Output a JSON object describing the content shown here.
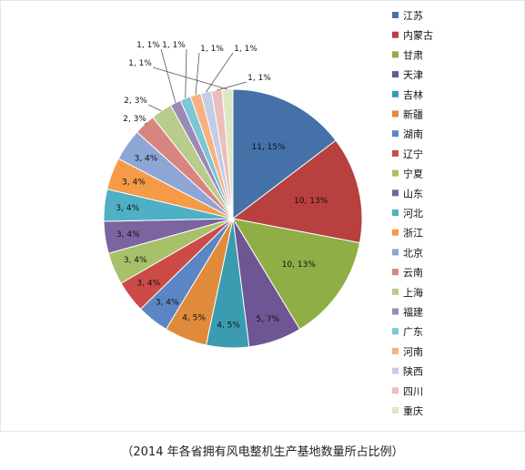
{
  "chart_data": {
    "type": "pie",
    "title": "",
    "legend_position": "right",
    "series": [
      {
        "categories": [
          "江苏",
          "内蒙古",
          "甘肃",
          "天津",
          "吉林",
          "新疆",
          "湖南",
          "辽宁",
          "宁夏",
          "山东",
          "河北",
          "浙江",
          "北京",
          "云南",
          "上海",
          "福建",
          "广东",
          "河南",
          "陕西",
          "四川",
          "重庆"
        ],
        "values": [
          11,
          10,
          10,
          5,
          4,
          4,
          3,
          3,
          3,
          3,
          3,
          3,
          3,
          2,
          2,
          1,
          1,
          1,
          1,
          1,
          1
        ],
        "labels": [
          "11, 15%",
          "10, 13%",
          "10, 13%",
          "5, 7%",
          "4, 5%",
          "4, 5%",
          "3, 4%",
          "3, 4%",
          "3, 4%",
          "3, 4%",
          "3, 4%",
          "3, 4%",
          "3, 4%",
          "2, 3%",
          "2, 3%",
          "1, 1%",
          "1, 1%",
          "1, 1%",
          "1, 1%",
          "1, 1%",
          "1, 1%"
        ],
        "colors": [
          "#4472a8",
          "#b8403f",
          "#8fae45",
          "#6e5694",
          "#3b9bb1",
          "#e08a3b",
          "#5b86c4",
          "#cc4b47",
          "#a6c16a",
          "#7b64a0",
          "#4fafc5",
          "#f59a46",
          "#8ea6d6",
          "#d9857f",
          "#b9cc8c",
          "#9b8ab5",
          "#7ec5d6",
          "#f8b183",
          "#c3cde5",
          "#ebbdbb",
          "#dce8c2"
        ]
      }
    ]
  },
  "caption": "（2014 年各省拥有风电整机生产基地数量所占比例）"
}
